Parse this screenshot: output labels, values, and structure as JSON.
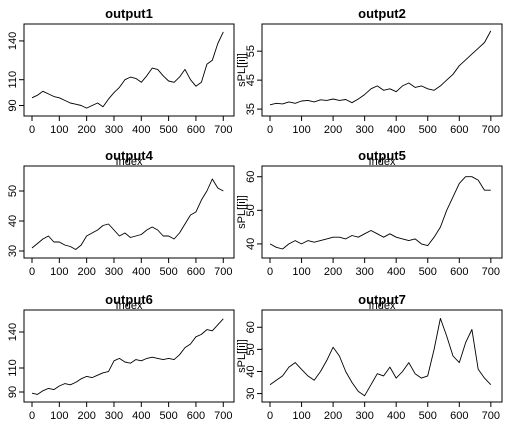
{
  "chart_data": [
    {
      "type": "line",
      "title": "output1",
      "xlabel": "",
      "ylabel": "",
      "xlim": [
        0,
        710
      ],
      "ylim": [
        85,
        150
      ],
      "xticks": [
        0,
        100,
        200,
        300,
        400,
        500,
        600,
        700
      ],
      "yticks": [
        90,
        110,
        140
      ],
      "series": [
        {
          "x": [
            0,
            20,
            40,
            60,
            80,
            100,
            120,
            140,
            160,
            180,
            200,
            220,
            240,
            260,
            280,
            300,
            320,
            340,
            360,
            380,
            400,
            420,
            440,
            460,
            480,
            500,
            520,
            540,
            560,
            580,
            600,
            620,
            640,
            660,
            680,
            700
          ],
          "y": [
            96,
            98,
            101,
            99,
            97,
            96,
            94,
            92,
            91,
            90,
            88,
            90,
            92,
            89,
            95,
            100,
            104,
            110,
            112,
            111,
            108,
            113,
            119,
            118,
            113,
            109,
            108,
            112,
            118,
            110,
            105,
            108,
            122,
            125,
            138,
            147
          ]
        }
      ]
    },
    {
      "type": "line",
      "title": "output2",
      "xlabel": "",
      "ylabel": "sPL[[i]]",
      "xlim": [
        0,
        710
      ],
      "ylim": [
        34,
        63
      ],
      "xticks": [
        0,
        100,
        200,
        300,
        400,
        500,
        600,
        700
      ],
      "yticks": [
        35,
        45,
        55
      ],
      "series": [
        {
          "x": [
            0,
            20,
            40,
            60,
            80,
            100,
            120,
            140,
            160,
            180,
            200,
            220,
            240,
            260,
            280,
            300,
            320,
            340,
            360,
            380,
            400,
            420,
            440,
            460,
            480,
            500,
            520,
            540,
            560,
            580,
            600,
            620,
            640,
            660,
            680,
            700
          ],
          "y": [
            36.5,
            37,
            36.8,
            37.5,
            37,
            37.8,
            38,
            37.5,
            38.2,
            38,
            38.5,
            38,
            38.3,
            37.2,
            38.5,
            40,
            42,
            43,
            41.5,
            42,
            41,
            43,
            44,
            42.5,
            43,
            42,
            41.5,
            43,
            45,
            47,
            50,
            52,
            54,
            56,
            58,
            62
          ]
        }
      ]
    },
    {
      "type": "line",
      "title": "output4",
      "xlabel": "Index",
      "ylabel": "",
      "xlim": [
        0,
        710
      ],
      "ylim": [
        29,
        57
      ],
      "xticks": [
        0,
        100,
        200,
        300,
        400,
        500,
        600,
        700
      ],
      "yticks": [
        30,
        40,
        50
      ],
      "series": [
        {
          "x": [
            0,
            20,
            40,
            60,
            80,
            100,
            120,
            140,
            160,
            180,
            200,
            220,
            240,
            260,
            280,
            300,
            320,
            340,
            360,
            380,
            400,
            420,
            440,
            460,
            480,
            500,
            520,
            540,
            560,
            580,
            600,
            620,
            640,
            660,
            680,
            700
          ],
          "y": [
            31,
            32.5,
            34,
            35,
            33,
            33,
            32,
            31.5,
            30.5,
            32,
            35,
            36,
            37,
            38.5,
            39,
            37,
            35,
            36,
            34.5,
            35,
            35.5,
            37,
            38,
            37,
            35,
            35,
            34,
            36,
            39,
            42,
            43,
            47,
            50,
            54,
            51,
            50
          ]
        }
      ]
    },
    {
      "type": "line",
      "title": "output5",
      "xlabel": "Index",
      "ylabel": "sPL[[i]]",
      "xlim": [
        0,
        710
      ],
      "ylim": [
        37,
        62
      ],
      "xticks": [
        0,
        100,
        200,
        300,
        400,
        500,
        600,
        700
      ],
      "yticks": [
        40,
        50,
        60
      ],
      "series": [
        {
          "x": [
            0,
            20,
            40,
            60,
            80,
            100,
            120,
            140,
            160,
            180,
            200,
            220,
            240,
            260,
            280,
            300,
            320,
            340,
            360,
            380,
            400,
            420,
            440,
            460,
            480,
            500,
            520,
            540,
            560,
            580,
            600,
            620,
            640,
            660,
            680,
            700
          ],
          "y": [
            40,
            39,
            38.5,
            40,
            41,
            40,
            41,
            40.5,
            41,
            41.5,
            42,
            42,
            41.5,
            42.5,
            42,
            43,
            44,
            43,
            42,
            43,
            42,
            41.5,
            41,
            41.5,
            40,
            39.5,
            42,
            45,
            50,
            54,
            58,
            60,
            60,
            59,
            56,
            56
          ]
        }
      ]
    },
    {
      "type": "line",
      "title": "output6",
      "xlabel": "Index",
      "ylabel": "",
      "xlim": [
        0,
        710
      ],
      "ylim": [
        85,
        155
      ],
      "xticks": [
        0,
        100,
        200,
        300,
        400,
        500,
        600,
        700
      ],
      "yticks": [
        90,
        110,
        140
      ],
      "series": [
        {
          "x": [
            0,
            20,
            40,
            60,
            80,
            100,
            120,
            140,
            160,
            180,
            200,
            220,
            240,
            260,
            280,
            300,
            320,
            340,
            360,
            380,
            400,
            420,
            440,
            460,
            480,
            500,
            520,
            540,
            560,
            580,
            600,
            620,
            640,
            660,
            680,
            700
          ],
          "y": [
            89,
            88,
            91,
            93,
            92,
            95,
            97,
            96,
            98,
            101,
            103,
            102,
            104,
            106,
            107,
            116,
            118,
            115,
            114,
            117,
            116,
            118,
            119,
            118,
            117,
            118,
            117,
            121,
            127,
            130,
            136,
            138,
            142,
            141,
            146,
            151
          ]
        }
      ]
    },
    {
      "type": "line",
      "title": "output7",
      "xlabel": "Index",
      "ylabel": "sPL[[i]]",
      "xlim": [
        0,
        710
      ],
      "ylim": [
        28,
        66
      ],
      "xticks": [
        0,
        100,
        200,
        300,
        400,
        500,
        600,
        700
      ],
      "yticks": [
        30,
        40,
        50,
        60
      ],
      "series": [
        {
          "x": [
            0,
            20,
            40,
            60,
            80,
            100,
            120,
            140,
            160,
            180,
            200,
            220,
            240,
            260,
            280,
            300,
            320,
            340,
            360,
            380,
            400,
            420,
            440,
            460,
            480,
            500,
            520,
            540,
            560,
            580,
            600,
            620,
            640,
            660,
            680,
            700
          ],
          "y": [
            34,
            36,
            38,
            42,
            44,
            41,
            38,
            36,
            40,
            45,
            51,
            47,
            40,
            35,
            31,
            29,
            34,
            39,
            38,
            42,
            37,
            40,
            44,
            39,
            37,
            38,
            50,
            64,
            56,
            47,
            44,
            53,
            59,
            41,
            37,
            34
          ]
        }
      ]
    }
  ]
}
